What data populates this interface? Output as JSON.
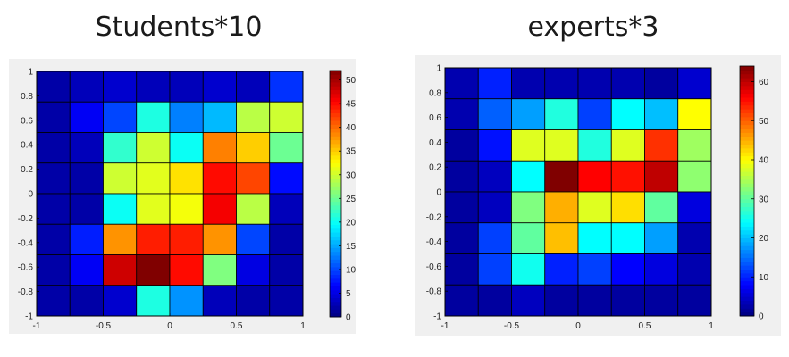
{
  "chart_data": [
    {
      "type": "heatmap",
      "title": "Students*10",
      "xlim": [
        -1,
        1
      ],
      "ylim": [
        -1,
        1
      ],
      "xticks": [
        "-1",
        "-0.5",
        "0",
        "0.5",
        "1"
      ],
      "yticks": [
        "1",
        "0.8",
        "0.6",
        "0.4",
        "0.2",
        "0",
        "-0.2",
        "-0.4",
        "-0.6",
        "-0.8",
        "-1"
      ],
      "colorbar": {
        "min": 0,
        "max": 52,
        "ticks": [
          "50",
          "45",
          "40",
          "35",
          "30",
          "25",
          "20",
          "15",
          "10",
          "5",
          "0"
        ]
      },
      "colormap": "jet",
      "grid": [
        [
          2,
          3,
          4,
          3,
          3,
          4,
          3,
          9
        ],
        [
          2,
          6,
          10,
          21,
          13,
          16,
          29,
          30
        ],
        [
          2,
          3,
          22,
          30,
          20,
          39,
          35,
          25
        ],
        [
          2,
          2,
          30,
          31,
          34,
          45,
          42,
          7
        ],
        [
          2,
          2,
          20,
          31,
          32,
          46,
          29,
          3
        ],
        [
          2,
          8,
          38,
          44,
          44,
          38,
          10,
          2
        ],
        [
          2,
          6,
          48,
          52,
          45,
          26,
          5,
          2
        ],
        [
          2,
          2,
          4,
          21,
          14,
          3,
          2,
          2
        ]
      ]
    },
    {
      "type": "heatmap",
      "title": "experts*3",
      "xlim": [
        -1,
        1
      ],
      "ylim": [
        -1,
        1
      ],
      "xticks": [
        "-1",
        "-0.5",
        "0",
        "0.5",
        "1"
      ],
      "yticks": [
        "1",
        "0.8",
        "0.6",
        "0.4",
        "0.2",
        "0",
        "-0.2",
        "-0.4",
        "-0.6",
        "-0.8",
        "-1"
      ],
      "colorbar": {
        "min": 0,
        "max": 64,
        "ticks": [
          "60",
          "50",
          "40",
          "30",
          "20",
          "10",
          "0"
        ]
      },
      "colormap": "jet",
      "grid": [
        [
          3,
          10,
          3,
          3,
          3,
          3,
          2,
          5
        ],
        [
          3,
          14,
          18,
          26,
          12,
          24,
          20,
          40
        ],
        [
          2,
          9,
          38,
          38,
          26,
          38,
          53,
          34
        ],
        [
          2,
          4,
          24,
          64,
          56,
          55,
          60,
          33
        ],
        [
          2,
          4,
          32,
          45,
          38,
          42,
          30,
          6
        ],
        [
          2,
          12,
          30,
          44,
          24,
          24,
          18,
          3
        ],
        [
          2,
          12,
          25,
          10,
          12,
          8,
          6,
          3
        ],
        [
          2,
          2,
          4,
          2,
          2,
          2,
          2,
          2
        ]
      ]
    }
  ]
}
